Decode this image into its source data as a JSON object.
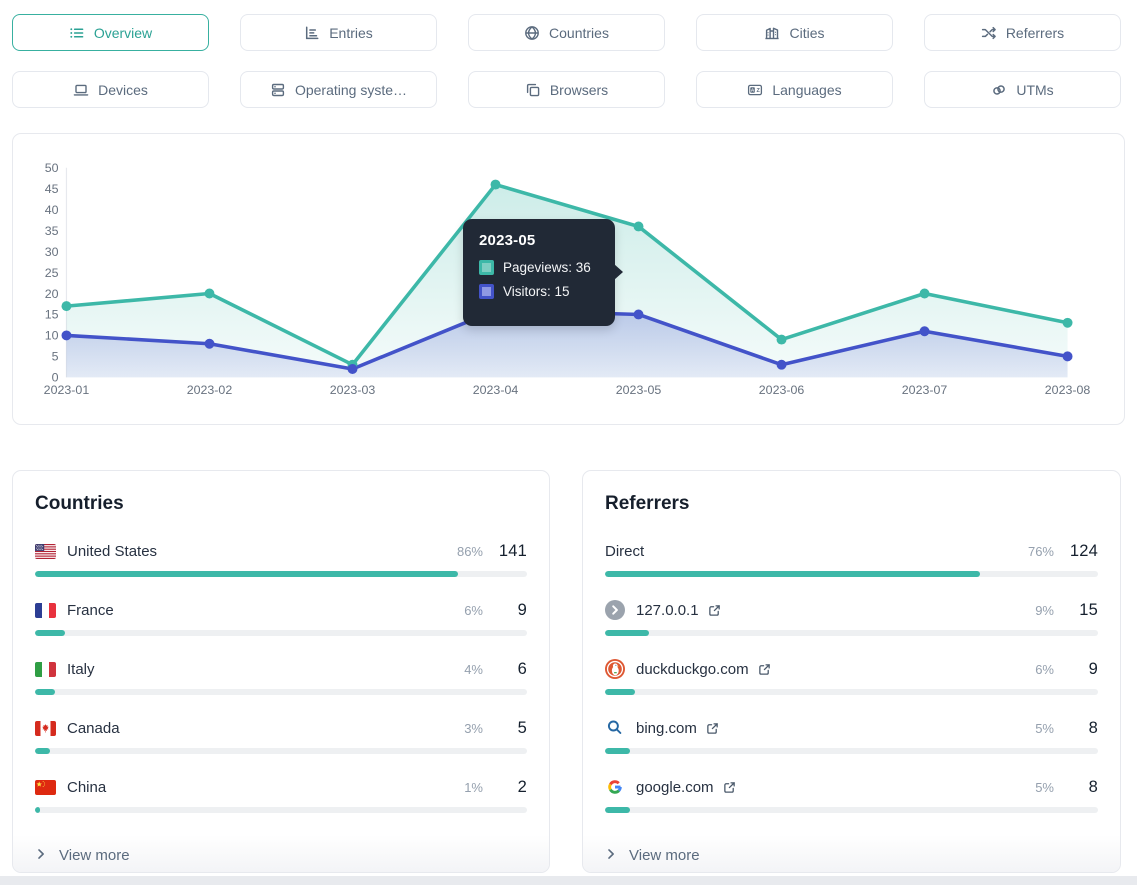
{
  "nav": {
    "tabs": [
      {
        "label": "Overview",
        "icon": "list-icon",
        "active": true
      },
      {
        "label": "Entries",
        "icon": "bar-chart-icon",
        "active": false
      },
      {
        "label": "Countries",
        "icon": "globe-icon",
        "active": false
      },
      {
        "label": "Cities",
        "icon": "city-icon",
        "active": false
      },
      {
        "label": "Referrers",
        "icon": "shuffle-icon",
        "active": false
      },
      {
        "label": "Devices",
        "icon": "laptop-icon",
        "active": false
      },
      {
        "label": "Operating syste…",
        "icon": "server-icon",
        "active": false
      },
      {
        "label": "Browsers",
        "icon": "windows-icon",
        "active": false
      },
      {
        "label": "Languages",
        "icon": "language-icon",
        "active": false
      },
      {
        "label": "UTMs",
        "icon": "link-icon",
        "active": false
      }
    ]
  },
  "chart_data": {
    "type": "line",
    "x": [
      "2023-01",
      "2023-02",
      "2023-03",
      "2023-04",
      "2023-05",
      "2023-06",
      "2023-07",
      "2023-08"
    ],
    "series": [
      {
        "name": "Pageviews",
        "color": "#3db8a8",
        "chip_bg": "#7fcec3",
        "area_from": "rgba(61,184,168,0.26)",
        "area_to": "rgba(61,184,168,0.05)",
        "values": [
          17,
          20,
          3,
          46,
          36,
          9,
          20,
          13
        ]
      },
      {
        "name": "Visitors",
        "color": "#4353c9",
        "chip_bg": "#8f99e4",
        "area_from": "rgba(67,83,201,0.28)",
        "area_to": "rgba(67,83,201,0.10)",
        "values": [
          10,
          8,
          2,
          16,
          15,
          3,
          11,
          5
        ]
      }
    ],
    "ylim": [
      0,
      50
    ],
    "ytick_step": 5,
    "grid": false,
    "legend_position": "none",
    "tooltip": {
      "title": "2023-05",
      "rows": [
        {
          "label": "Pageviews",
          "value": 36
        },
        {
          "label": "Visitors",
          "value": 15
        }
      ]
    }
  },
  "countries": {
    "title": "Countries",
    "rows": [
      {
        "label": "United States",
        "flag": "us-flag-icon",
        "percent": "86%",
        "value": "141",
        "bar": 86
      },
      {
        "label": "France",
        "flag": "fr-flag-icon",
        "percent": "6%",
        "value": "9",
        "bar": 6
      },
      {
        "label": "Italy",
        "flag": "it-flag-icon",
        "percent": "4%",
        "value": "6",
        "bar": 4
      },
      {
        "label": "Canada",
        "flag": "ca-flag-icon",
        "percent": "3%",
        "value": "5",
        "bar": 3
      },
      {
        "label": "China",
        "flag": "cn-flag-icon",
        "percent": "1%",
        "value": "2",
        "bar": 1
      }
    ],
    "view_more": "View more"
  },
  "referrers": {
    "title": "Referrers",
    "rows": [
      {
        "label": "Direct",
        "icon": "none",
        "percent": "76%",
        "value": "124",
        "bar": 76,
        "external": false
      },
      {
        "label": "127.0.0.1",
        "icon": "default-favicon",
        "percent": "9%",
        "value": "15",
        "bar": 9,
        "external": true
      },
      {
        "label": "duckduckgo.com",
        "icon": "duckduckgo-favicon",
        "percent": "6%",
        "value": "9",
        "bar": 6,
        "external": true
      },
      {
        "label": "bing.com",
        "icon": "bing-favicon",
        "percent": "5%",
        "value": "8",
        "bar": 5,
        "external": true
      },
      {
        "label": "google.com",
        "icon": "google-favicon",
        "percent": "5%",
        "value": "8",
        "bar": 5,
        "external": true
      }
    ],
    "view_more": "View more"
  },
  "colors": {
    "accent_teal": "#3db8a8",
    "accent_indigo": "#4353c9",
    "tab_active": "#2ba294",
    "tab_text": "#5b6b7e",
    "value_text": "#15202e",
    "percent_text": "#95a0ae",
    "bar_track": "#eef0f2",
    "tooltip_bg": "#212936"
  }
}
